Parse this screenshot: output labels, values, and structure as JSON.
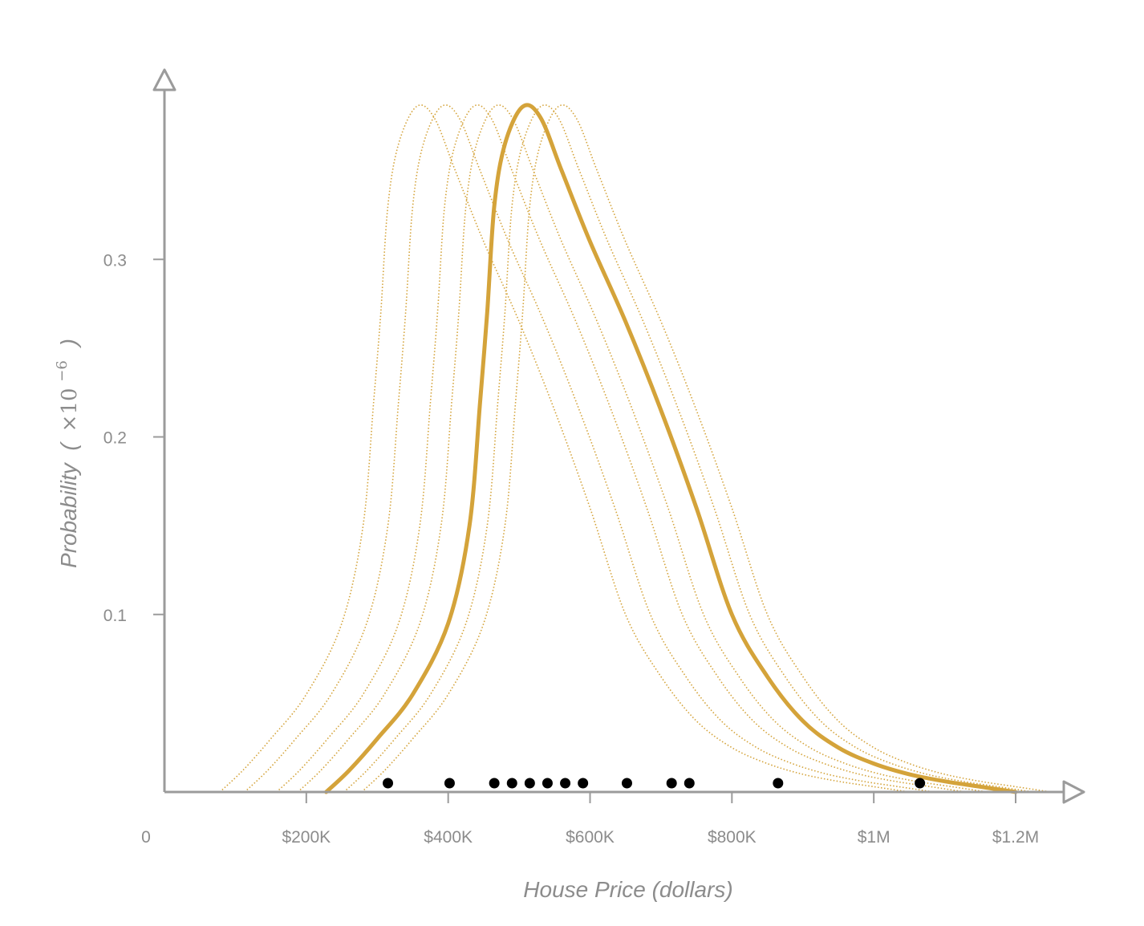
{
  "chart_data": {
    "type": "line",
    "xlabel": "House Price (dollars)",
    "ylabel": {
      "text": "Probability",
      "paren_open": "(",
      "times": "×10",
      "exponent": "−6",
      "paren_close": ")"
    },
    "xlim": [
      0,
      1250000
    ],
    "ylim": [
      0,
      0.38
    ],
    "x_ticks": [
      {
        "value": 0,
        "label": "0"
      },
      {
        "value": 200000,
        "label": "$200K"
      },
      {
        "value": 400000,
        "label": "$400K"
      },
      {
        "value": 600000,
        "label": "$600K"
      },
      {
        "value": 800000,
        "label": "$800K"
      },
      {
        "value": 1000000,
        "label": "$1M"
      },
      {
        "value": 1200000,
        "label": "$1.2M"
      }
    ],
    "y_ticks": [
      {
        "value": 0.1,
        "label": "0.1"
      },
      {
        "value": 0.2,
        "label": "0.2"
      },
      {
        "value": 0.3,
        "label": "0.3"
      }
    ],
    "colors": {
      "curve": "#d4a33a",
      "axis": "#9b9b9b",
      "points": "#000000"
    },
    "main_curve": {
      "style": "solid",
      "x_start": 228000,
      "x_end": 1200000,
      "peak_x": 505000,
      "peak_y": 0.386,
      "points": [
        [
          228000,
          0.0
        ],
        [
          260000,
          0.012
        ],
        [
          300000,
          0.03
        ],
        [
          350000,
          0.055
        ],
        [
          400000,
          0.095
        ],
        [
          430000,
          0.15
        ],
        [
          445000,
          0.22
        ],
        [
          455000,
          0.27
        ],
        [
          465000,
          0.33
        ],
        [
          480000,
          0.365
        ],
        [
          505000,
          0.386
        ],
        [
          530000,
          0.38
        ],
        [
          560000,
          0.35
        ],
        [
          600000,
          0.31
        ],
        [
          650000,
          0.265
        ],
        [
          700000,
          0.215
        ],
        [
          750000,
          0.16
        ],
        [
          800000,
          0.1
        ],
        [
          850000,
          0.065
        ],
        [
          900000,
          0.04
        ],
        [
          950000,
          0.025
        ],
        [
          1000000,
          0.016
        ],
        [
          1050000,
          0.01
        ],
        [
          1100000,
          0.006
        ],
        [
          1150000,
          0.003
        ],
        [
          1200000,
          0.0
        ]
      ]
    },
    "sample_curves": {
      "style": "dotted",
      "count": 6,
      "shifts": [
        -150000,
        -115000,
        -70000,
        -40000,
        25000,
        50000
      ]
    },
    "data_points": [
      315000,
      402000,
      465000,
      490000,
      515000,
      540000,
      565000,
      590000,
      652000,
      715000,
      740000,
      865000,
      1065000
    ]
  }
}
